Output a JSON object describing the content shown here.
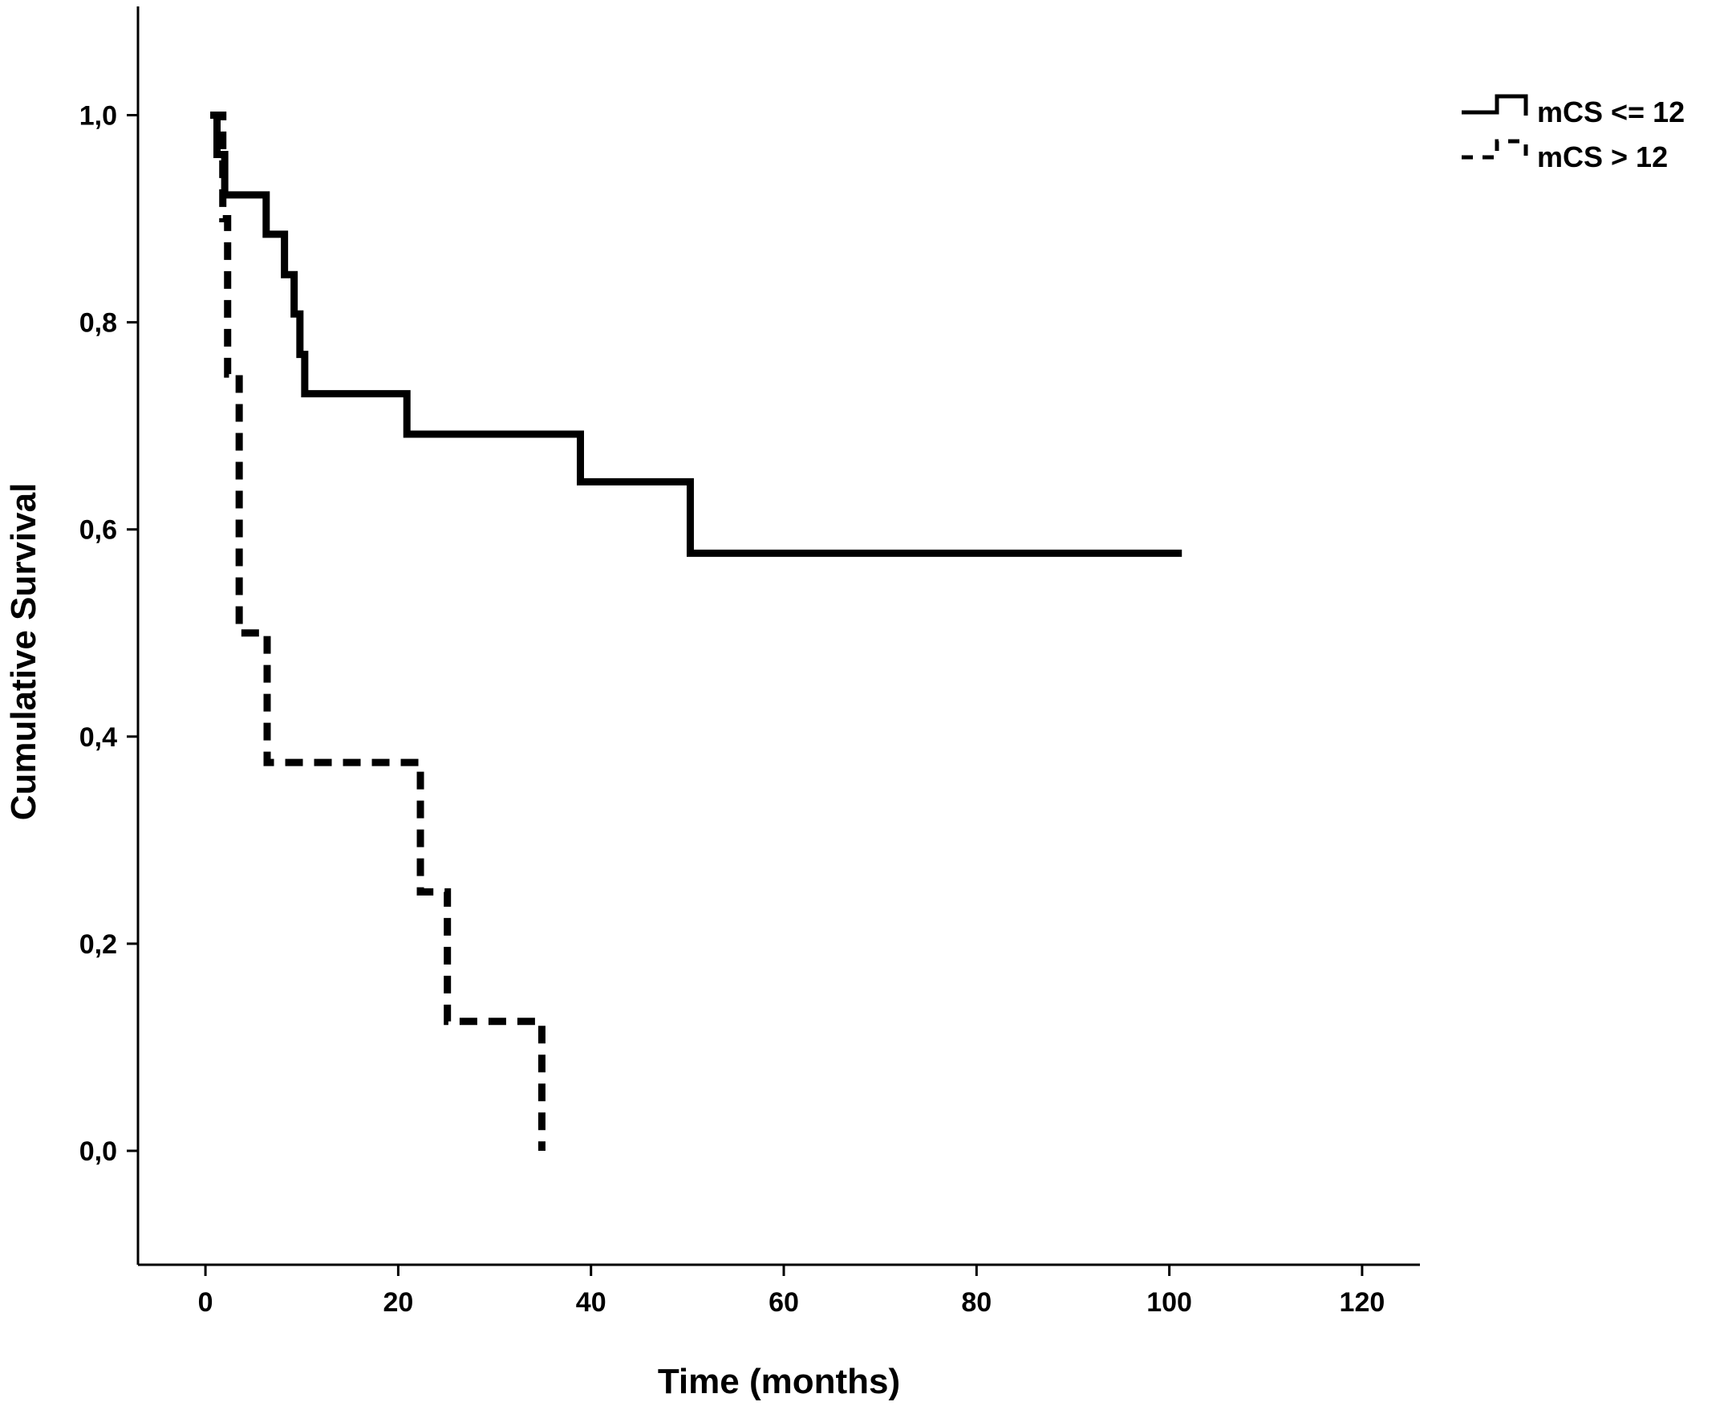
{
  "chart_data": {
    "type": "line",
    "title": "",
    "xlabel": "Time (months)",
    "ylabel": "Cumulative Survival",
    "xlim": [
      -7,
      126
    ],
    "ylim": [
      -0.11,
      1.105
    ],
    "x_ticks": [
      {
        "value": 0,
        "label": "0"
      },
      {
        "value": 20,
        "label": "20"
      },
      {
        "value": 40,
        "label": "40"
      },
      {
        "value": 60,
        "label": "60"
      },
      {
        "value": 80,
        "label": "80"
      },
      {
        "value": 100,
        "label": "100"
      },
      {
        "value": 120,
        "label": "120"
      }
    ],
    "y_ticks": [
      {
        "value": 0.0,
        "label": "0,0"
      },
      {
        "value": 0.2,
        "label": "0,2"
      },
      {
        "value": 0.4,
        "label": "0,4"
      },
      {
        "value": 0.6,
        "label": "0,6"
      },
      {
        "value": 0.8,
        "label": "0,8"
      },
      {
        "value": 1.0,
        "label": "1,0"
      }
    ],
    "grid": false,
    "legend_position": "top-right",
    "series": [
      {
        "name": "mCS <= 12",
        "style": "solid",
        "color": "#000000",
        "step_points": [
          {
            "x": 0.5,
            "y": 1.0
          },
          {
            "x": 1.2,
            "y": 0.962
          },
          {
            "x": 2.0,
            "y": 0.923
          },
          {
            "x": 6.3,
            "y": 0.885
          },
          {
            "x": 8.2,
            "y": 0.846
          },
          {
            "x": 9.2,
            "y": 0.808
          },
          {
            "x": 9.8,
            "y": 0.769
          },
          {
            "x": 10.3,
            "y": 0.731
          },
          {
            "x": 20.9,
            "y": 0.692
          },
          {
            "x": 38.9,
            "y": 0.646
          },
          {
            "x": 50.3,
            "y": 0.577
          },
          {
            "x": 101.3,
            "y": 0.577
          }
        ]
      },
      {
        "name": "mCS > 12",
        "style": "dashed",
        "color": "#000000",
        "step_points": [
          {
            "x": 0.5,
            "y": 1.0
          },
          {
            "x": 1.8,
            "y": 0.9
          },
          {
            "x": 2.3,
            "y": 0.75
          },
          {
            "x": 3.5,
            "y": 0.5
          },
          {
            "x": 6.4,
            "y": 0.375
          },
          {
            "x": 22.3,
            "y": 0.25
          },
          {
            "x": 25.1,
            "y": 0.125
          },
          {
            "x": 34.9,
            "y": 0.0
          }
        ]
      }
    ]
  }
}
